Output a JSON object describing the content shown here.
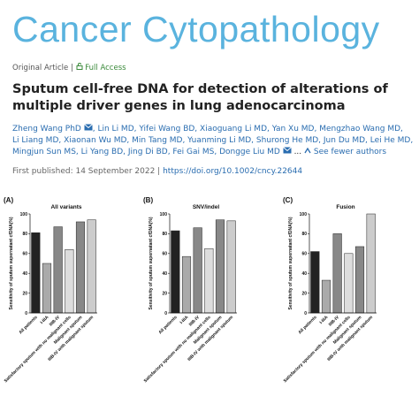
{
  "header": {
    "journal": "Cancer Cytopathology",
    "article_type": "Original Article",
    "separator": "|",
    "access": "Full Access"
  },
  "title": "Sputum cell-free DNA for detection of alterations of multiple driver genes in lung adenocarcinoma",
  "authors": {
    "first": "Zheng Wang PhD",
    "line1_rest": ", Lin Li MD, Yifei Wang BD, Xiaoguang Li MD, Yan Xu MD, Mengzhao Wang MD,",
    "line2": "Li Liang MD, Xiaonan Wu MD, Min Tang MD, Yuanming Li MD, Shurong He MD, Jun Du MD, Lei He MD,",
    "line3": "Mingjun Sun MS, Li Yang BD, Jing Di BD, Fei Gai MS, Dongge Liu MD",
    "ellipsis": "...",
    "toggle": "See fewer authors"
  },
  "published": {
    "text": "First published: 14 September 2022",
    "separator": "|",
    "doi": "https://doi.org/10.1002/cncy.22644"
  },
  "chart_data": [
    {
      "type": "bar",
      "panel_label": "(A)",
      "title": "All variants",
      "y_label": "Sensitivity of sputum supernatant cfDNA(%)",
      "categories": [
        "All patients",
        "I-IIIA",
        "IIIB-IV",
        "Satisfactory sputum with no malignant cells",
        "Malignant sputum",
        "IIIB-IV with malignant sputum"
      ],
      "values": [
        81,
        50,
        87,
        64,
        92,
        94
      ],
      "colors": [
        "#222222",
        "#aaaaaa",
        "#888888",
        "#dddddd",
        "#888888",
        "#cccccc"
      ],
      "ylim": [
        0,
        100
      ],
      "yticks": [
        0,
        20,
        40,
        60,
        80,
        100
      ]
    },
    {
      "type": "bar",
      "panel_label": "(B)",
      "title": "SNV/indel",
      "y_label": "Sensitivity of sputum supernatant cfDNA(%)",
      "categories": [
        "All patients",
        "I-IIIA",
        "IIIB-IV",
        "Satisfactory sputum with no malignant cells",
        "Malignant sputum",
        "IIIB-IV with malignant sputum"
      ],
      "values": [
        83,
        57,
        86,
        65,
        94,
        93
      ],
      "colors": [
        "#222222",
        "#aaaaaa",
        "#888888",
        "#dddddd",
        "#888888",
        "#cccccc"
      ],
      "ylim": [
        0,
        100
      ],
      "yticks": [
        0,
        20,
        40,
        60,
        80,
        100
      ]
    },
    {
      "type": "bar",
      "panel_label": "(C)",
      "title": "Fusion",
      "y_label": "Sensitivity of sputum supernatant cfDNA(%)",
      "categories": [
        "All patients",
        "I-IIIA",
        "IIIB-IV",
        "Satisfactory sputum with no malignant cells",
        "Malignant sputum",
        "IIIB-IV with malignant sputum"
      ],
      "values": [
        62,
        33,
        80,
        60,
        67,
        100
      ],
      "colors": [
        "#222222",
        "#aaaaaa",
        "#888888",
        "#dddddd",
        "#888888",
        "#cccccc"
      ],
      "ylim": [
        0,
        100
      ],
      "yticks": [
        0,
        20,
        40,
        60,
        80,
        100
      ]
    }
  ]
}
